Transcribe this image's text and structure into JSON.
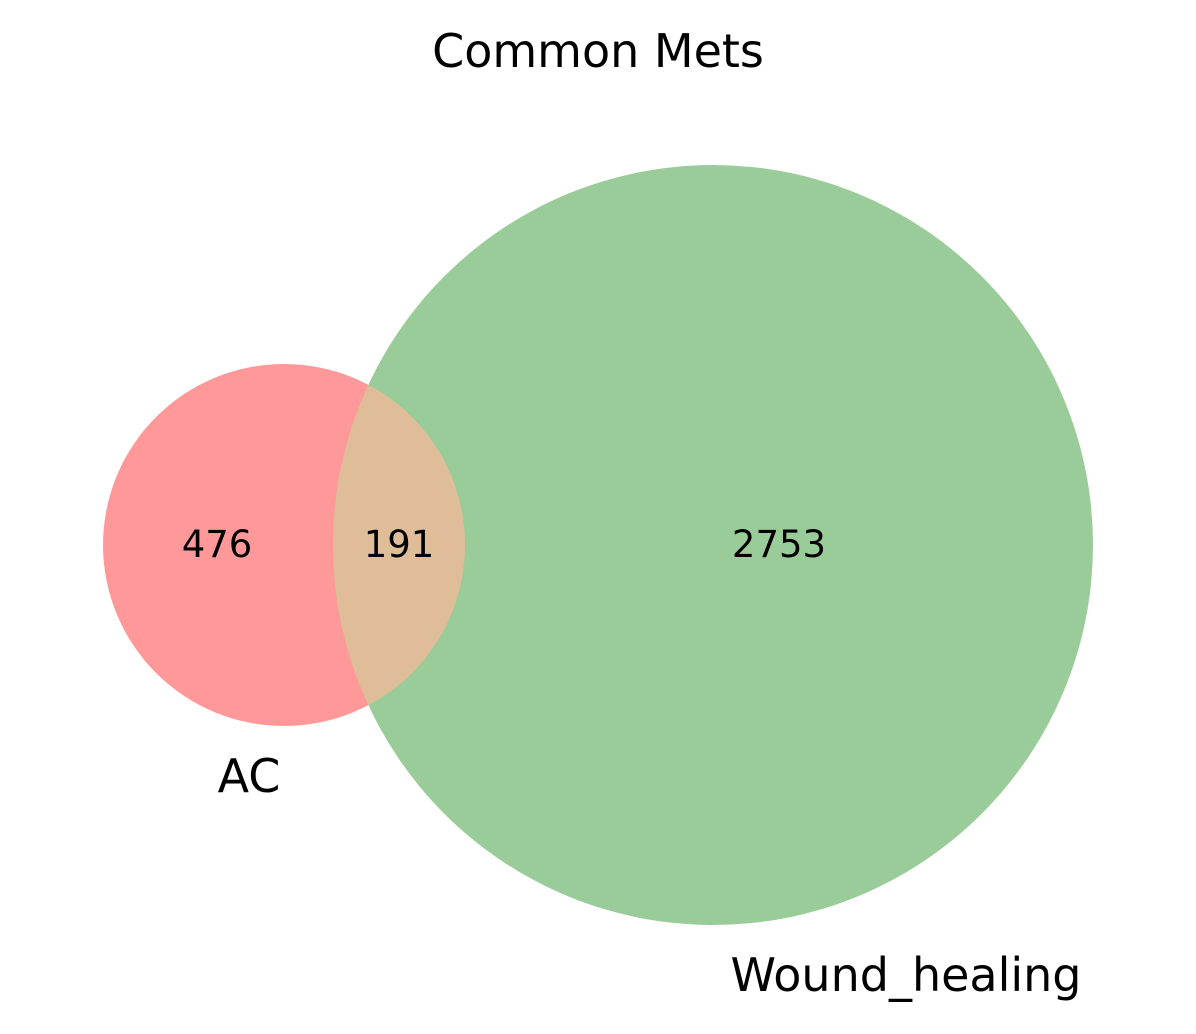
{
  "title": "Common Mets",
  "sets": [
    {
      "name": "AC",
      "only_count": "476",
      "color": "#ff9999"
    },
    {
      "name": "Wound_healing",
      "only_count": "2753",
      "color": "#9acc99"
    }
  ],
  "intersection": {
    "count": "191",
    "color": "#e0bd99"
  },
  "chart_data": {
    "type": "venn",
    "title": "Common Mets",
    "sets": [
      "AC",
      "Wound_healing"
    ],
    "regions": [
      {
        "sets": [
          "AC"
        ],
        "value": 476
      },
      {
        "sets": [
          "AC",
          "Wound_healing"
        ],
        "value": 191
      },
      {
        "sets": [
          "Wound_healing"
        ],
        "value": 2753
      }
    ]
  }
}
